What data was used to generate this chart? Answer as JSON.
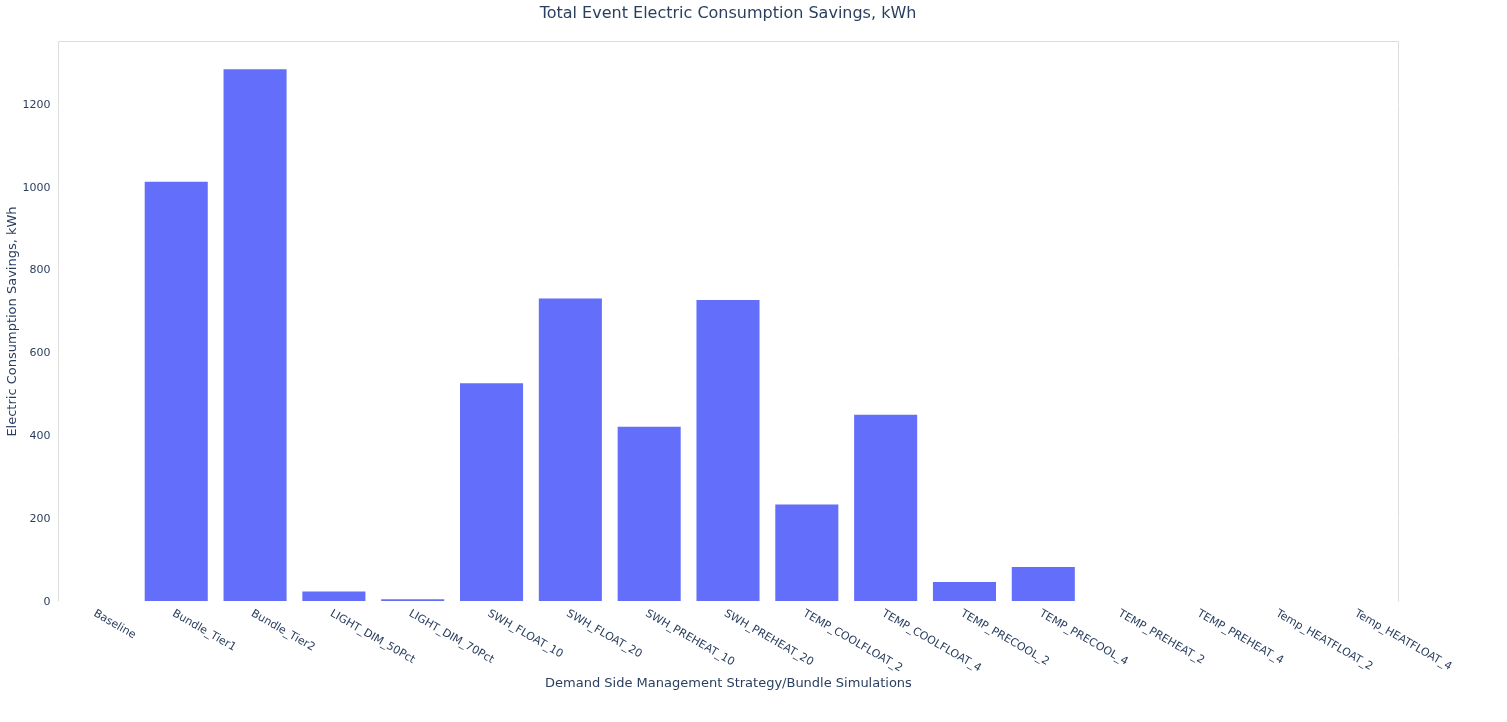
{
  "chart_data": {
    "type": "bar",
    "title": "Total Event Electric Consumption Savings, kWh",
    "xlabel": "Demand Side Management Strategy/Bundle Simulations",
    "ylabel": "Electric Consumption Savings, kWh",
    "categories": [
      "Baseline",
      "Bundle_Tier1",
      "Bundle_Tier2",
      "LIGHT_DIM_50Pct",
      "LIGHT_DIM_70Pct",
      "SWH_FLOAT_10",
      "SWH_FLOAT_20",
      "SWH_PREHEAT_10",
      "SWH_PREHEAT_20",
      "TEMP_COOLFLOAT_2",
      "TEMP_COOLFLOAT_4",
      "TEMP_PRECOOL_2",
      "TEMP_PRECOOL_4",
      "TEMP_PREHEAT_2",
      "TEMP_PREHEAT_4",
      "Temp_HEATFLOAT_2",
      "Temp_HEATFLOAT_4"
    ],
    "values": [
      0,
      1013,
      1285,
      23,
      4,
      526,
      731,
      421,
      727,
      233,
      450,
      46,
      82,
      0,
      0,
      0,
      0
    ],
    "color": "#636efa",
    "ylim": [
      0,
      1353
    ],
    "yticks": [
      0,
      200,
      400,
      600,
      800,
      1000,
      1200
    ],
    "grid": "y"
  }
}
